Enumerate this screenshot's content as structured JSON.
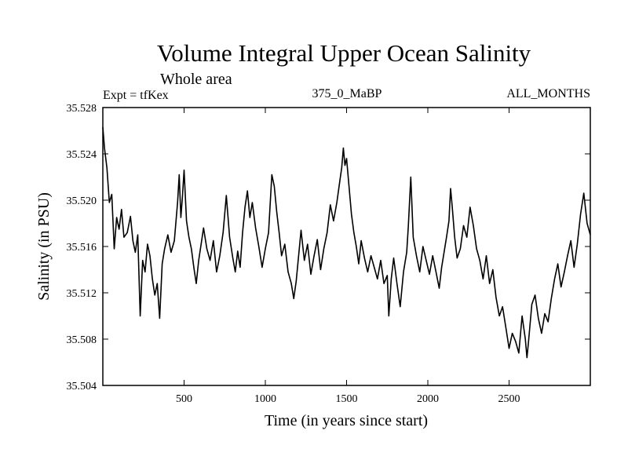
{
  "chart_data": {
    "type": "line",
    "title": "Volume Integral Upper Ocean Salinity",
    "subtitle": "Whole area",
    "expt_label": "Expt = tfKex",
    "run_label": "375_0_MaBP",
    "months_label": "ALL_MONTHS",
    "xlabel": "Time (in years since start)",
    "ylabel": "Salinity (in PSU)",
    "xlim": [
      0,
      3000
    ],
    "ylim": [
      35.504,
      35.528
    ],
    "x_ticks": [
      500,
      1000,
      1500,
      2000,
      2500
    ],
    "x_tick_labels": [
      "500",
      "1000",
      "1500",
      "2000",
      "2500"
    ],
    "y_ticks": [
      35.504,
      35.508,
      35.512,
      35.516,
      35.52,
      35.524,
      35.528
    ],
    "y_tick_labels": [
      "35.504",
      "35.508",
      "35.512",
      "35.516",
      "35.520",
      "35.524",
      "35.528"
    ],
    "grid": false,
    "line_color": "#000000",
    "series": [
      {
        "x": [
          0,
          10,
          25,
          40,
          55,
          70,
          85,
          100,
          115,
          130,
          150,
          170,
          185,
          200,
          215,
          230,
          245,
          260,
          275,
          290,
          305,
          320,
          335,
          350,
          365,
          380,
          400,
          420,
          440,
          460,
          470,
          480,
          490,
          500,
          515,
          530,
          545,
          560,
          575,
          590,
          605,
          620,
          640,
          660,
          680,
          700,
          720,
          740,
          760,
          780,
          800,
          815,
          830,
          845,
          860,
          875,
          890,
          905,
          920,
          940,
          960,
          980,
          1000,
          1020,
          1040,
          1055,
          1070,
          1085,
          1100,
          1120,
          1140,
          1160,
          1175,
          1190,
          1205,
          1220,
          1240,
          1260,
          1280,
          1300,
          1320,
          1340,
          1360,
          1380,
          1400,
          1420,
          1440,
          1460,
          1470,
          1480,
          1490,
          1500,
          1515,
          1530,
          1545,
          1560,
          1575,
          1590,
          1610,
          1630,
          1650,
          1670,
          1690,
          1710,
          1730,
          1750,
          1760,
          1775,
          1790,
          1810,
          1830,
          1850,
          1870,
          1880,
          1895,
          1910,
          1930,
          1950,
          1970,
          1990,
          2010,
          2030,
          2050,
          2070,
          2085,
          2100,
          2115,
          2130,
          2140,
          2150,
          2165,
          2180,
          2200,
          2220,
          2240,
          2260,
          2280,
          2300,
          2320,
          2340,
          2360,
          2380,
          2400,
          2420,
          2440,
          2460,
          2480,
          2500,
          2520,
          2540,
          2560,
          2580,
          2600,
          2610,
          2620,
          2640,
          2660,
          2680,
          2700,
          2720,
          2740,
          2760,
          2780,
          2800,
          2820,
          2840,
          2860,
          2880,
          2900,
          2920,
          2940,
          2960,
          2980,
          3000
        ],
        "y": [
          35.5263,
          35.5245,
          35.5228,
          35.5198,
          35.5205,
          35.5158,
          35.5185,
          35.5175,
          35.5192,
          35.5168,
          35.5172,
          35.5186,
          35.5165,
          35.5155,
          35.517,
          35.51,
          35.5148,
          35.5138,
          35.5162,
          35.5152,
          35.5132,
          35.5118,
          35.5128,
          35.5098,
          35.5145,
          35.5158,
          35.517,
          35.5155,
          35.5165,
          35.5198,
          35.5222,
          35.5185,
          35.5203,
          35.5226,
          35.5182,
          35.5168,
          35.5158,
          35.5142,
          35.5128,
          35.5148,
          35.5162,
          35.5176,
          35.5158,
          35.5148,
          35.5165,
          35.5138,
          35.5152,
          35.5172,
          35.5204,
          35.5168,
          35.515,
          35.5138,
          35.5156,
          35.5142,
          35.5172,
          35.5194,
          35.5208,
          35.5185,
          35.5198,
          35.5176,
          35.516,
          35.5142,
          35.5158,
          35.5172,
          35.5222,
          35.5212,
          35.519,
          35.5172,
          35.5152,
          35.5162,
          35.5138,
          35.5128,
          35.5115,
          35.513,
          35.5152,
          35.5174,
          35.5148,
          35.5162,
          35.5136,
          35.5152,
          35.5166,
          35.514,
          35.5158,
          35.5172,
          35.5196,
          35.5182,
          35.5198,
          35.5218,
          35.5228,
          35.5245,
          35.523,
          35.5236,
          35.5212,
          35.5188,
          35.5172,
          35.516,
          35.5145,
          35.5165,
          35.515,
          35.5138,
          35.5152,
          35.5142,
          35.5132,
          35.5148,
          35.5128,
          35.5135,
          35.51,
          35.5132,
          35.515,
          35.5128,
          35.5108,
          35.5138,
          35.5155,
          35.5178,
          35.522,
          35.5168,
          35.5152,
          35.5138,
          35.516,
          35.5148,
          35.5136,
          35.5152,
          35.5138,
          35.5124,
          35.5142,
          35.5155,
          35.5168,
          35.5182,
          35.521,
          35.5195,
          35.5168,
          35.515,
          35.5158,
          35.5178,
          35.5168,
          35.5194,
          35.5178,
          35.5158,
          35.5148,
          35.5132,
          35.5152,
          35.5128,
          35.514,
          35.5116,
          35.51,
          35.5108,
          35.509,
          35.5072,
          35.5085,
          35.5078,
          35.5068,
          35.51,
          35.508,
          35.5064,
          35.5078,
          35.511,
          35.5118,
          35.5098,
          35.5085,
          35.5102,
          35.5095,
          35.5115,
          35.5132,
          35.5145,
          35.5125,
          35.5138,
          35.5152,
          35.5165,
          35.5142,
          35.5162,
          35.5188,
          35.5206,
          35.518,
          35.517
        ]
      }
    ]
  }
}
